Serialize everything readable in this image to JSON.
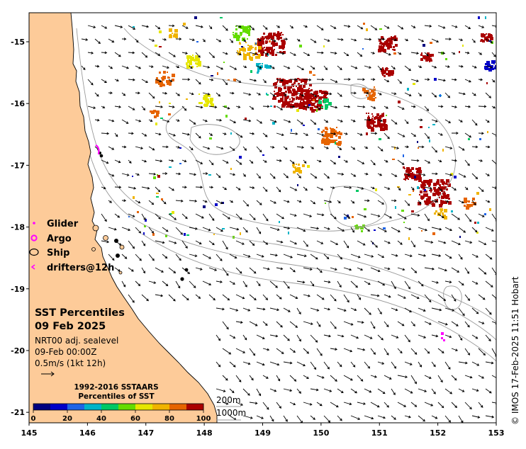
{
  "map": {
    "x_ticks": [
      {
        "value": 145,
        "label": "145"
      },
      {
        "value": 146,
        "label": "146"
      },
      {
        "value": 147,
        "label": "147"
      },
      {
        "value": 148,
        "label": "148"
      },
      {
        "value": 149,
        "label": "149"
      },
      {
        "value": 150,
        "label": "150"
      },
      {
        "value": 151,
        "label": "151"
      },
      {
        "value": 152,
        "label": "152"
      },
      {
        "value": 153,
        "label": "153"
      }
    ],
    "y_ticks": [
      {
        "value": -15,
        "label": "-15"
      },
      {
        "value": -16,
        "label": "-16"
      },
      {
        "value": -17,
        "label": "-17"
      },
      {
        "value": -18,
        "label": "-18"
      },
      {
        "value": -19,
        "label": "-19"
      },
      {
        "value": -20,
        "label": "-20"
      },
      {
        "value": -21,
        "label": "-21"
      }
    ],
    "lon_range": [
      145,
      153
    ],
    "lat_range": [
      -21.17,
      -14.53
    ],
    "colors": {
      "land": "#fdcb99",
      "ocean": "#ffffff",
      "isobath": "#9a9a9a",
      "glider": "#ff00ff",
      "argo": "#ff00ff",
      "drifter": "#ff00ff"
    }
  },
  "legend": {
    "glider": "Glider",
    "argo": "Argo",
    "ship": "Ship",
    "drifters": "drifters@12h"
  },
  "info": {
    "title": "SST Percentiles",
    "date": "09 Feb 2025",
    "line1": "NRT00 adj. sealevel",
    "line2": "09-Feb 00:00Z",
    "line3": "0.5m/s (1kt 12h)"
  },
  "colorbar": {
    "title1": "1992-2016 SSTAARS",
    "title2": "Percentiles of SST",
    "colors": [
      "#000080",
      "#0000c8",
      "#1e64e6",
      "#00b4c8",
      "#00c864",
      "#64dc00",
      "#e6e600",
      "#f0b400",
      "#e66400",
      "#aa0000"
    ],
    "ticks": [
      "0",
      "20",
      "40",
      "60",
      "80",
      "100"
    ]
  },
  "isobaths": {
    "label_200": "200m",
    "label_1000": "1000m"
  },
  "credit": "© IMOS 17-Feb-2025 11:51 Hobart"
}
